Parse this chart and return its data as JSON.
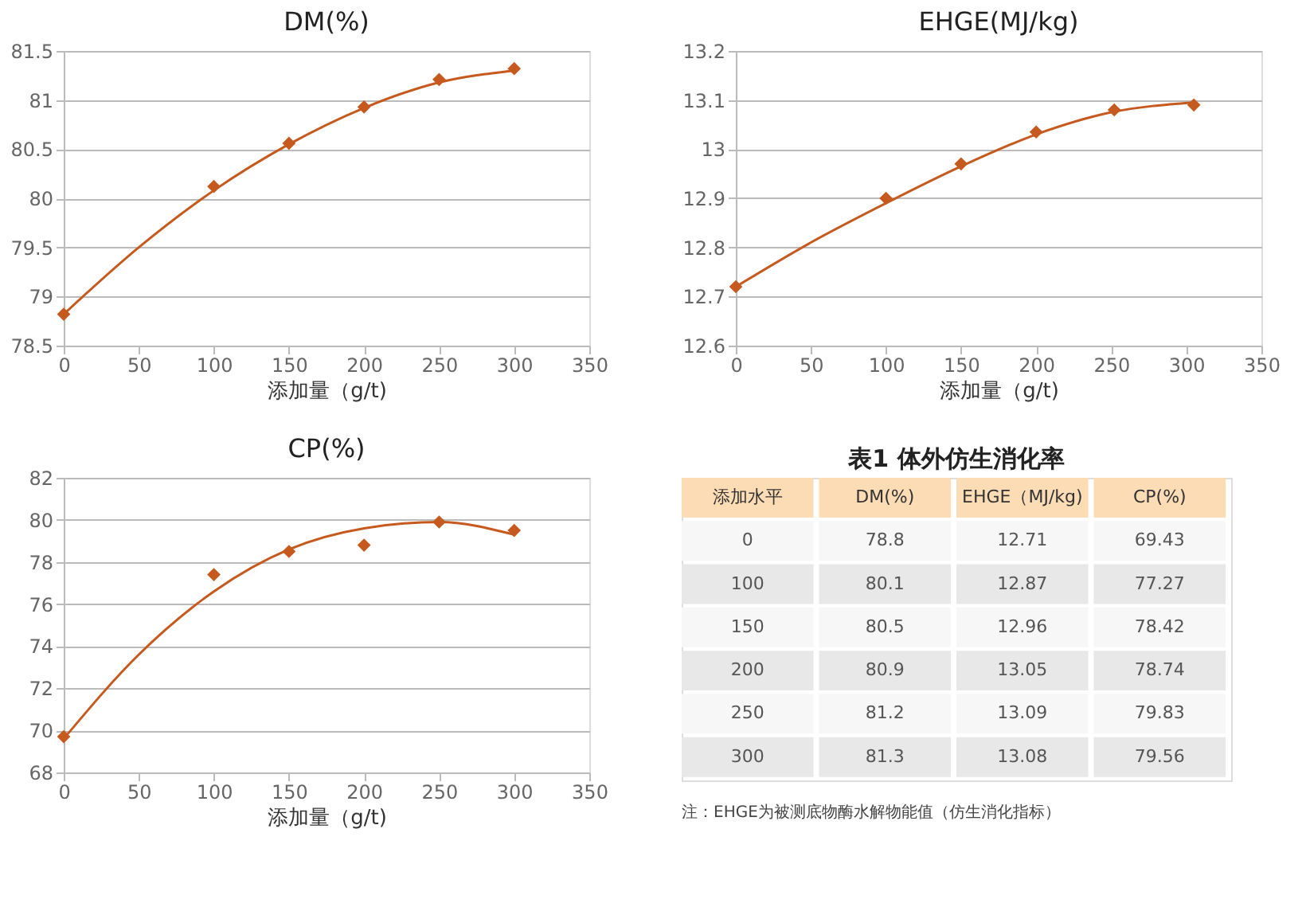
{
  "chart_data": [
    {
      "type": "scatter",
      "title": "DM(%)",
      "xlabel": "添加量（g/t)",
      "x": [
        0,
        100,
        150,
        200,
        250,
        300
      ],
      "grid": "y",
      "legend": false,
      "xlim": [
        0,
        350
      ],
      "xticks": [
        0,
        50,
        100,
        150,
        200,
        250,
        300,
        350
      ],
      "ylim": [
        78.5,
        81.5
      ],
      "yticks": [
        78.5,
        79,
        79.5,
        80,
        80.5,
        81,
        81.5
      ],
      "series": [
        {
          "type": "scatter",
          "marker": "diamond",
          "color": "#c65a1e",
          "values": [
            78.82,
            80.12,
            80.56,
            80.93,
            81.21,
            81.32
          ]
        },
        {
          "type": "line",
          "color": "#c65a1e",
          "x": [
            0,
            50,
            100,
            150,
            200,
            250,
            300
          ],
          "values": [
            78.82,
            79.5,
            80.08,
            80.55,
            80.92,
            81.18,
            81.3
          ]
        }
      ]
    },
    {
      "type": "scatter",
      "title": "EHGE(MJ/kg)",
      "xlabel": "添加量（g/t)",
      "x": [
        0,
        100,
        150,
        200,
        252,
        305
      ],
      "grid": "y",
      "legend": false,
      "xlim": [
        0,
        350
      ],
      "xticks": [
        0,
        50,
        100,
        150,
        200,
        250,
        300,
        350
      ],
      "ylim": [
        12.6,
        13.2
      ],
      "yticks": [
        12.6,
        12.7,
        12.8,
        12.9,
        13,
        13.1,
        13.2
      ],
      "series": [
        {
          "type": "scatter",
          "marker": "diamond",
          "color": "#c65a1e",
          "values": [
            12.72,
            12.9,
            12.97,
            13.035,
            13.08,
            13.09
          ]
        },
        {
          "type": "line",
          "color": "#c65a1e",
          "x": [
            0,
            50,
            100,
            150,
            200,
            250,
            305
          ],
          "values": [
            12.72,
            12.81,
            12.89,
            12.965,
            13.03,
            13.075,
            13.095
          ]
        }
      ]
    },
    {
      "type": "scatter",
      "title": "CP(%)",
      "xlabel": "添加量（g/t)",
      "x": [
        0,
        100,
        150,
        200,
        250,
        300
      ],
      "grid": "y",
      "legend": false,
      "xlim": [
        0,
        350
      ],
      "xticks": [
        0,
        50,
        100,
        150,
        200,
        250,
        300,
        350
      ],
      "ylim": [
        68,
        82
      ],
      "yticks": [
        68,
        70,
        72,
        74,
        76,
        78,
        80,
        82
      ],
      "series": [
        {
          "type": "scatter",
          "marker": "diamond",
          "color": "#c65a1e",
          "values": [
            69.7,
            77.4,
            78.5,
            78.8,
            79.9,
            79.5
          ]
        },
        {
          "type": "line",
          "color": "#c65a1e",
          "x": [
            0,
            50,
            100,
            150,
            200,
            250,
            300
          ],
          "values": [
            69.6,
            73.6,
            76.6,
            78.6,
            79.6,
            79.9,
            79.3
          ]
        }
      ]
    },
    {
      "type": "heatmap",
      "title": "表1 体外仿生消化率",
      "ylabel": "添加水平",
      "data_labels": true,
      "categories": [
        "DM(%)",
        "EHGE（MJ/kg)",
        "CP(%)"
      ],
      "y_categories": [
        "0",
        "100",
        "150",
        "200",
        "250",
        "300"
      ],
      "cells": [
        [
          78.8,
          12.71,
          69.43
        ],
        [
          80.1,
          12.87,
          77.27
        ],
        [
          80.5,
          12.96,
          78.42
        ],
        [
          80.9,
          13.05,
          78.74
        ],
        [
          81.2,
          13.09,
          79.83
        ],
        [
          81.3,
          13.08,
          79.56
        ]
      ],
      "annotations": [
        "注：EHGE为被测底物酶水解物能值（仿生消化指标）"
      ]
    }
  ]
}
